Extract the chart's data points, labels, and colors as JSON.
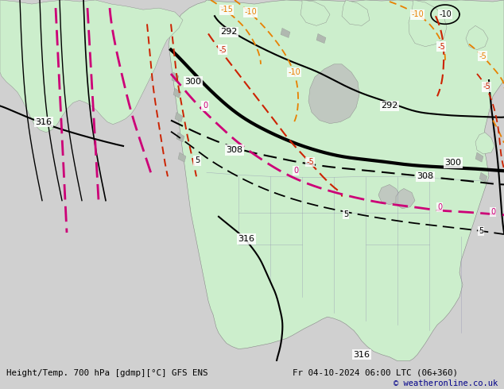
{
  "title_left": "Height/Temp. 700 hPa [gdmp][°C] GFS ENS",
  "title_right": "Fr 04-10-2024 06:00 LTC (06+360)",
  "copyright": "© weatheronline.co.uk",
  "ocean_color": "#d8d8d8",
  "land_color": "#cceecc",
  "gray_detail_color": "#b0b8b0",
  "border_color": "#9090b0",
  "fig_width": 6.34,
  "fig_height": 4.9,
  "dpi": 100,
  "bottom_bar_color": "#d0d0d0"
}
